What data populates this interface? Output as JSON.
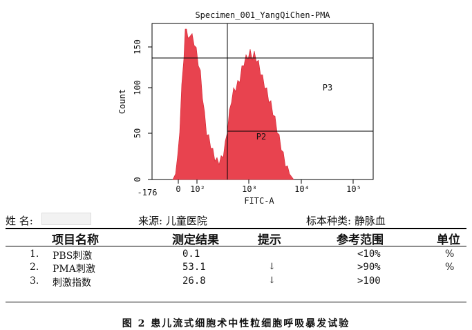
{
  "chart_data": {
    "type": "area",
    "title": "Specimen_001_YangQiChen-PMA",
    "xlabel": "FITC-A",
    "ylabel": "Count",
    "x_ticks": [
      "-176",
      "0",
      "10²",
      "10³",
      "10⁴",
      "10⁵"
    ],
    "y_ticks": [
      "0",
      "50",
      "100",
      "150"
    ],
    "ylim": [
      0,
      170
    ],
    "x_scale": "log (biexponential)",
    "grid": false,
    "gates": [
      {
        "name": "P2",
        "x_from": "~10^2.5",
        "x_to": "axis max",
        "count_from": 0,
        "count_to": 52
      },
      {
        "name": "P3",
        "x_from": "~10^2.5",
        "x_to": "axis max",
        "count_from": 52,
        "count_to": 135
      }
    ],
    "series": [
      {
        "fill": "#e8434f",
        "peaks": [
          {
            "x_position": "~10^1.9",
            "height": 168
          },
          {
            "x_position": "~10^3.0",
            "height": 138
          }
        ]
      }
    ]
  },
  "header": {
    "name_label": "姓 名:",
    "source": "来源: 儿童医院",
    "specimen": "标本种类: 静脉血"
  },
  "table": {
    "headers": [
      "项目名称",
      "测定结果",
      "提示",
      "参考范围",
      "单位"
    ],
    "rows": [
      {
        "num": "1.",
        "item": "PBS刺激",
        "result": "0.1",
        "hint": "",
        "ref": "<10%",
        "unit": "%"
      },
      {
        "num": "2.",
        "item": "PMA刺激",
        "result": "53.1",
        "hint": "↓",
        "ref": ">90%",
        "unit": "%"
      },
      {
        "num": "3.",
        "item": "刺激指数",
        "result": "26.8",
        "hint": "↓",
        "ref": ">100",
        "unit": ""
      }
    ]
  },
  "caption": "图 2   患儿流式细胞术中性粒细胞呼吸暴发试验",
  "colors": {
    "histogram": "#e8434f",
    "histogram_dark": "#d62432",
    "text": "#111111"
  }
}
